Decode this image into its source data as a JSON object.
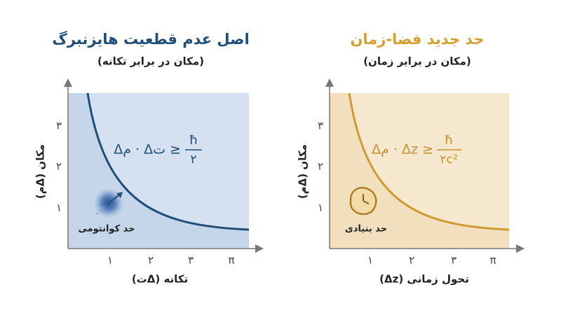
{
  "panels": [
    {
      "title": "اصل عدم قطعیت هایزنبرگ",
      "subtitle": "(مکان در برابر تکانه)",
      "formula": {
        "lhs": "Δم · Δت ≥",
        "numerator": "ħ",
        "denominator": "۲"
      },
      "y_label": "مکان (Δم)",
      "x_label": "تکانه (Δت)",
      "y_ticks": [
        "۳",
        "۲",
        "۱"
      ],
      "x_ticks": [
        "۱",
        "۲",
        "۳",
        "π"
      ],
      "annotation": "حد کوانتومی"
    },
    {
      "title": "حد جدید فضا-زمان",
      "subtitle": "(مکان در برابر زمان)",
      "formula": {
        "lhs": "Δم · Δz ≥",
        "numerator": "ħ",
        "denominator": "۲c²"
      },
      "y_label": "مکان (Δم)",
      "x_label": "تحول زمانی (Δz)",
      "y_ticks": [
        "۳",
        "۲",
        "۱"
      ],
      "x_ticks": [
        "۱",
        "۲",
        "۳",
        "π"
      ],
      "annotation": "حد بنیادی"
    }
  ]
}
